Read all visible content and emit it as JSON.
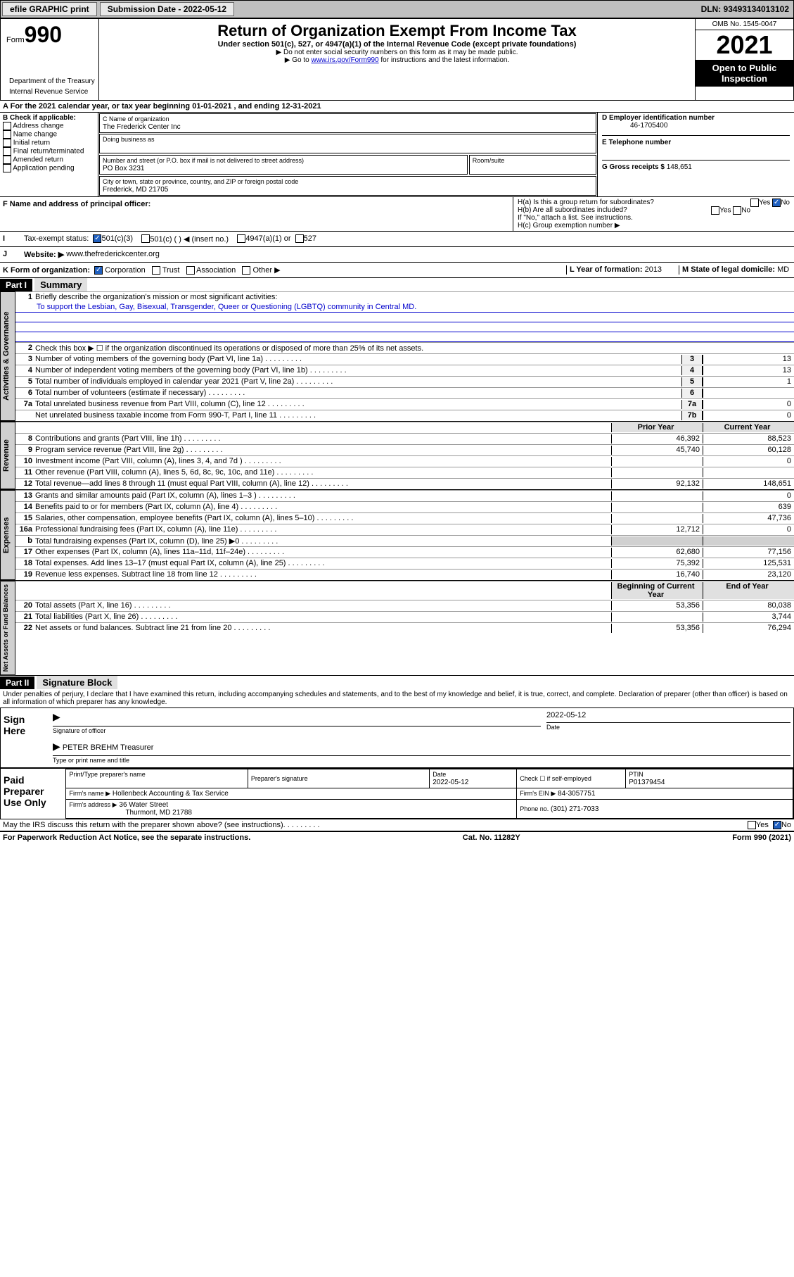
{
  "topbar": {
    "efile": "efile GRAPHIC print",
    "submission": "Submission Date - 2022-05-12",
    "dln": "DLN: 93493134013102"
  },
  "header": {
    "form_label": "Form",
    "form_num": "990",
    "title": "Return of Organization Exempt From Income Tax",
    "subtitle": "Under section 501(c), 527, or 4947(a)(1) of the Internal Revenue Code (except private foundations)",
    "note1": "▶ Do not enter social security numbers on this form as it may be made public.",
    "note2_pre": "▶ Go to ",
    "note2_link": "www.irs.gov/Form990",
    "note2_post": " for instructions and the latest information.",
    "omb": "OMB No. 1545-0047",
    "year": "2021",
    "otp": "Open to Public Inspection",
    "dept": "Department of the Treasury",
    "irs": "Internal Revenue Service"
  },
  "sectionA": "For the 2021 calendar year, or tax year beginning 01-01-2021   , and ending 12-31-2021",
  "boxB": {
    "title": "B Check if applicable:",
    "opts": [
      "Address change",
      "Name change",
      "Initial return",
      "Final return/terminated",
      "Amended return",
      "Application pending"
    ]
  },
  "boxC": {
    "name_label": "C Name of organization",
    "name": "The Frederick Center Inc",
    "dba_label": "Doing business as",
    "addr_label": "Number and street (or P.O. box if mail is not delivered to street address)",
    "room_label": "Room/suite",
    "addr": "PO Box 3231",
    "city_label": "City or town, state or province, country, and ZIP or foreign postal code",
    "city": "Frederick, MD  21705"
  },
  "boxD": {
    "label": "D Employer identification number",
    "val": "46-1705400"
  },
  "boxE": {
    "label": "E Telephone number"
  },
  "boxG": {
    "label": "G Gross receipts $",
    "val": "148,651"
  },
  "boxF": "F  Name and address of principal officer:",
  "boxH": {
    "a": "H(a)  Is this a group return for subordinates?",
    "b": "H(b)  Are all subordinates included?",
    "note": "If \"No,\" attach a list. See instructions.",
    "c": "H(c)  Group exemption number ▶"
  },
  "boxI": {
    "label": "Tax-exempt status:",
    "opts": [
      "501(c)(3)",
      "501(c) (  ) ◀ (insert no.)",
      "4947(a)(1) or",
      "527"
    ]
  },
  "boxJ": {
    "label": "Website: ▶",
    "val": "www.thefrederickcenter.org"
  },
  "boxK": {
    "label": "K Form of organization:",
    "opts": [
      "Corporation",
      "Trust",
      "Association",
      "Other ▶"
    ]
  },
  "boxL": {
    "label": "L Year of formation:",
    "val": "2013"
  },
  "boxM": {
    "label": "M State of legal domicile:",
    "val": "MD"
  },
  "part1": {
    "header": "Part I",
    "title": "Summary",
    "line1_label": "Briefly describe the organization's mission or most significant activities:",
    "mission": "To support the Lesbian, Gay, Bisexual, Transgender, Queer or Questioning (LGBTQ) community in Central MD.",
    "line2": "Check this box ▶ ☐  if the organization discontinued its operations or disposed of more than 25% of its net assets.",
    "vtab_ag": "Activities & Governance",
    "vtab_rev": "Revenue",
    "vtab_exp": "Expenses",
    "vtab_na": "Net Assets or Fund Balances",
    "prior_hdr": "Prior Year",
    "current_hdr": "Current Year",
    "boy_hdr": "Beginning of Current Year",
    "eoy_hdr": "End of Year",
    "lines_ag": [
      {
        "n": "3",
        "d": "Number of voting members of the governing body (Part VI, line 1a)",
        "box": "3",
        "v": "13"
      },
      {
        "n": "4",
        "d": "Number of independent voting members of the governing body (Part VI, line 1b)",
        "box": "4",
        "v": "13"
      },
      {
        "n": "5",
        "d": "Total number of individuals employed in calendar year 2021 (Part V, line 2a)",
        "box": "5",
        "v": "1"
      },
      {
        "n": "6",
        "d": "Total number of volunteers (estimate if necessary)",
        "box": "6",
        "v": ""
      },
      {
        "n": "7a",
        "d": "Total unrelated business revenue from Part VIII, column (C), line 12",
        "box": "7a",
        "v": "0"
      },
      {
        "n": "",
        "d": "Net unrelated business taxable income from Form 990-T, Part I, line 11",
        "box": "7b",
        "v": "0"
      }
    ],
    "lines_rev": [
      {
        "n": "8",
        "d": "Contributions and grants (Part VIII, line 1h)",
        "p": "46,392",
        "c": "88,523"
      },
      {
        "n": "9",
        "d": "Program service revenue (Part VIII, line 2g)",
        "p": "45,740",
        "c": "60,128"
      },
      {
        "n": "10",
        "d": "Investment income (Part VIII, column (A), lines 3, 4, and 7d )",
        "p": "",
        "c": "0"
      },
      {
        "n": "11",
        "d": "Other revenue (Part VIII, column (A), lines 5, 6d, 8c, 9c, 10c, and 11e)",
        "p": "",
        "c": ""
      },
      {
        "n": "12",
        "d": "Total revenue—add lines 8 through 11 (must equal Part VIII, column (A), line 12)",
        "p": "92,132",
        "c": "148,651"
      }
    ],
    "lines_exp": [
      {
        "n": "13",
        "d": "Grants and similar amounts paid (Part IX, column (A), lines 1–3 )",
        "p": "",
        "c": "0"
      },
      {
        "n": "14",
        "d": "Benefits paid to or for members (Part IX, column (A), line 4)",
        "p": "",
        "c": "639"
      },
      {
        "n": "15",
        "d": "Salaries, other compensation, employee benefits (Part IX, column (A), lines 5–10)",
        "p": "",
        "c": "47,736"
      },
      {
        "n": "16a",
        "d": "Professional fundraising fees (Part IX, column (A), line 11e)",
        "p": "12,712",
        "c": "0"
      },
      {
        "n": "b",
        "d": "Total fundraising expenses (Part IX, column (D), line 25) ▶0",
        "p": "grey",
        "c": "grey"
      },
      {
        "n": "17",
        "d": "Other expenses (Part IX, column (A), lines 11a–11d, 11f–24e)",
        "p": "62,680",
        "c": "77,156"
      },
      {
        "n": "18",
        "d": "Total expenses. Add lines 13–17 (must equal Part IX, column (A), line 25)",
        "p": "75,392",
        "c": "125,531"
      },
      {
        "n": "19",
        "d": "Revenue less expenses. Subtract line 18 from line 12",
        "p": "16,740",
        "c": "23,120"
      }
    ],
    "lines_na": [
      {
        "n": "20",
        "d": "Total assets (Part X, line 16)",
        "p": "53,356",
        "c": "80,038"
      },
      {
        "n": "21",
        "d": "Total liabilities (Part X, line 26)",
        "p": "",
        "c": "3,744"
      },
      {
        "n": "22",
        "d": "Net assets or fund balances. Subtract line 21 from line 20",
        "p": "53,356",
        "c": "76,294"
      }
    ]
  },
  "part2": {
    "header": "Part II",
    "title": "Signature Block",
    "jurat": "Under penalties of perjury, I declare that I have examined this return, including accompanying schedules and statements, and to the best of my knowledge and belief, it is true, correct, and complete. Declaration of preparer (other than officer) is based on all information of which preparer has any knowledge.",
    "sign_here": "Sign Here",
    "sig_officer": "Signature of officer",
    "sig_date": "2022-05-12",
    "date_label": "Date",
    "officer_name": "PETER BREHM Treasurer",
    "type_label": "Type or print name and title",
    "paid": "Paid Preparer Use Only",
    "prep_name_label": "Print/Type preparer's name",
    "prep_sig_label": "Preparer's signature",
    "prep_date_label": "Date",
    "prep_date": "2022-05-12",
    "check_if": "Check ☐ if self-employed",
    "ptin_label": "PTIN",
    "ptin": "P01379454",
    "firm_name_label": "Firm's name    ▶",
    "firm_name": "Hollenbeck Accounting & Tax Service",
    "firm_ein_label": "Firm's EIN ▶",
    "firm_ein": "84-3057751",
    "firm_addr_label": "Firm's address ▶",
    "firm_addr1": "36 Water Street",
    "firm_addr2": "Thurmont, MD  21788",
    "phone_label": "Phone no.",
    "phone": "(301) 271-7033",
    "discuss": "May the IRS discuss this return with the preparer shown above? (see instructions)"
  },
  "footer": {
    "pra": "For Paperwork Reduction Act Notice, see the separate instructions.",
    "cat": "Cat. No. 11282Y",
    "form": "Form 990 (2021)"
  }
}
